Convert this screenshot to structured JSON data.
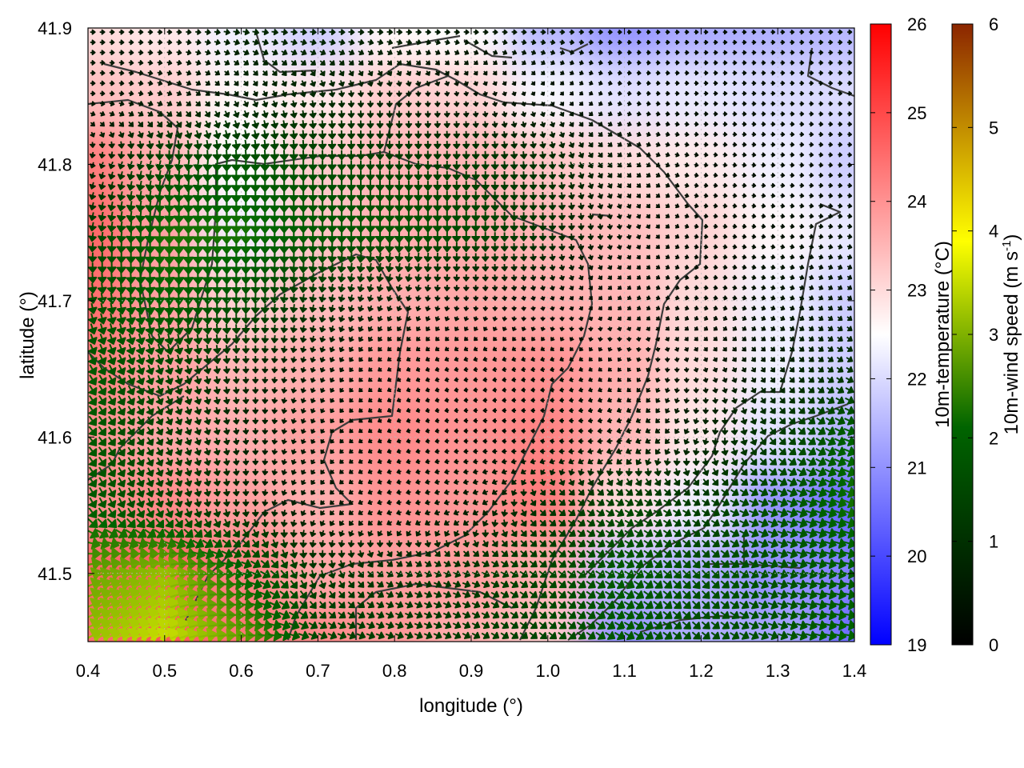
{
  "chart_data": {
    "type": "heatmap",
    "title": "",
    "xlabel": "longitude (°)",
    "ylabel": "latitude (°)",
    "xlim": [
      0.4,
      1.4
    ],
    "ylim": [
      41.45,
      41.9
    ],
    "x_ticks": [
      "0.4",
      "0.5",
      "0.6",
      "0.7",
      "0.8",
      "0.9",
      "1.0",
      "1.1",
      "1.2",
      "1.3",
      "1.4"
    ],
    "y_ticks": [
      "41.5",
      "41.6",
      "41.7",
      "41.8",
      "41.9"
    ],
    "grid": true,
    "temperature": {
      "label": "10m-temperature (°C)",
      "range": [
        19,
        26
      ],
      "ticks": [
        "19",
        "20",
        "21",
        "22",
        "23",
        "24",
        "25",
        "26"
      ],
      "colors": [
        "#0000ff",
        "#ffffff",
        "#ff0000"
      ]
    },
    "wind_speed": {
      "label": "10m-wind speed (m s",
      "label_sup": "-1",
      "label_close": ")",
      "range": [
        0,
        6
      ],
      "ticks": [
        "0",
        "1",
        "2",
        "3",
        "4",
        "5",
        "6"
      ],
      "colors": [
        "#000000",
        "#006400",
        "#ffff00",
        "#8b2500"
      ]
    },
    "temperature_field": {
      "lon": [
        0.4,
        0.5,
        0.6,
        0.7,
        0.8,
        0.9,
        1.0,
        1.1,
        1.2,
        1.3,
        1.4
      ],
      "lat": [
        41.9,
        41.85,
        41.8,
        41.75,
        41.7,
        41.65,
        41.6,
        41.55,
        41.5,
        41.45
      ],
      "values": [
        [
          23.0,
          22.8,
          22.3,
          21.8,
          22.6,
          22.5,
          21.5,
          21.0,
          21.3,
          21.4,
          21.5
        ],
        [
          23.4,
          23.2,
          22.6,
          22.8,
          23.2,
          23.1,
          22.4,
          22.1,
          22.2,
          22.0,
          22.0
        ],
        [
          24.3,
          23.6,
          22.5,
          23.2,
          23.5,
          23.5,
          23.3,
          23.0,
          22.8,
          22.3,
          21.8
        ],
        [
          24.6,
          23.8,
          22.3,
          23.3,
          23.6,
          23.6,
          23.5,
          23.4,
          23.1,
          22.6,
          22.2
        ],
        [
          24.5,
          23.8,
          23.1,
          23.4,
          23.6,
          23.7,
          23.6,
          23.5,
          23.0,
          22.3,
          21.8
        ],
        [
          24.3,
          23.8,
          23.5,
          23.6,
          23.9,
          23.9,
          24.0,
          23.6,
          23.0,
          22.3,
          21.8
        ],
        [
          24.0,
          23.7,
          23.6,
          23.8,
          24.1,
          24.0,
          24.2,
          23.5,
          22.8,
          22.1,
          21.4
        ],
        [
          24.0,
          24.1,
          23.8,
          23.6,
          24.0,
          23.9,
          24.3,
          23.0,
          22.3,
          21.0,
          20.4
        ],
        [
          24.6,
          24.7,
          24.2,
          23.7,
          23.8,
          23.8,
          23.6,
          21.6,
          21.4,
          21.0,
          20.8
        ],
        [
          24.5,
          24.8,
          24.4,
          24.1,
          23.9,
          23.6,
          23.2,
          21.0,
          21.4,
          21.3,
          20.5
        ]
      ]
    },
    "wind_field": {
      "lon": [
        0.4,
        0.5,
        0.6,
        0.7,
        0.8,
        0.9,
        1.0,
        1.1,
        1.2,
        1.3,
        1.4
      ],
      "lat": [
        41.9,
        41.85,
        41.8,
        41.75,
        41.7,
        41.65,
        41.6,
        41.55,
        41.5,
        41.45
      ],
      "speed": [
        [
          0.5,
          0.4,
          0.8,
          0.7,
          0.6,
          0.5,
          0.5,
          0.3,
          0.3,
          0.3,
          0.4
        ],
        [
          0.4,
          0.5,
          0.6,
          0.8,
          0.6,
          0.4,
          0.3,
          0.3,
          0.3,
          0.3,
          0.3
        ],
        [
          0.6,
          1.5,
          1.8,
          1.5,
          1.3,
          1.2,
          1.0,
          0.5,
          0.3,
          0.3,
          0.3
        ],
        [
          1.2,
          2.2,
          2.2,
          1.8,
          1.8,
          1.5,
          1.0,
          0.4,
          0.3,
          0.3,
          0.4
        ],
        [
          1.5,
          2.0,
          1.6,
          1.0,
          0.6,
          0.4,
          0.3,
          0.3,
          0.3,
          0.4,
          0.5
        ],
        [
          1.8,
          1.4,
          0.8,
          0.5,
          0.3,
          0.3,
          0.3,
          0.3,
          0.4,
          0.6,
          1.0
        ],
        [
          1.8,
          1.2,
          0.7,
          0.4,
          0.3,
          0.3,
          0.3,
          0.5,
          0.7,
          1.2,
          2.0
        ],
        [
          1.8,
          1.3,
          0.8,
          0.5,
          0.4,
          0.6,
          1.0,
          1.4,
          1.2,
          1.6,
          2.2
        ],
        [
          2.8,
          3.2,
          2.0,
          1.1,
          1.0,
          1.1,
          1.4,
          1.8,
          1.6,
          1.6,
          1.8
        ],
        [
          3.2,
          3.6,
          2.8,
          1.4,
          1.2,
          1.2,
          1.4,
          1.8,
          1.5,
          1.6,
          2.0
        ]
      ],
      "direction_to_deg": [
        [
          90,
          90,
          100,
          90,
          90,
          90,
          90,
          90,
          90,
          90,
          90
        ],
        [
          90,
          110,
          150,
          170,
          180,
          170,
          150,
          100,
          90,
          90,
          90
        ],
        [
          200,
          190,
          180,
          180,
          180,
          180,
          175,
          130,
          100,
          95,
          95
        ],
        [
          190,
          180,
          180,
          180,
          180,
          180,
          180,
          170,
          100,
          100,
          100
        ],
        [
          170,
          175,
          180,
          190,
          200,
          180,
          160,
          120,
          100,
          110,
          130
        ],
        [
          150,
          160,
          175,
          200,
          240,
          260,
          260,
          220,
          160,
          140,
          120
        ],
        [
          140,
          150,
          170,
          210,
          250,
          270,
          280,
          260,
          200,
          140,
          110
        ],
        [
          150,
          160,
          175,
          220,
          260,
          250,
          130,
          120,
          120,
          110,
          110
        ],
        [
          70,
          70,
          100,
          170,
          120,
          110,
          130,
          120,
          140,
          110,
          100
        ],
        [
          60,
          65,
          90,
          110,
          110,
          120,
          130,
          120,
          130,
          110,
          100
        ]
      ]
    }
  }
}
